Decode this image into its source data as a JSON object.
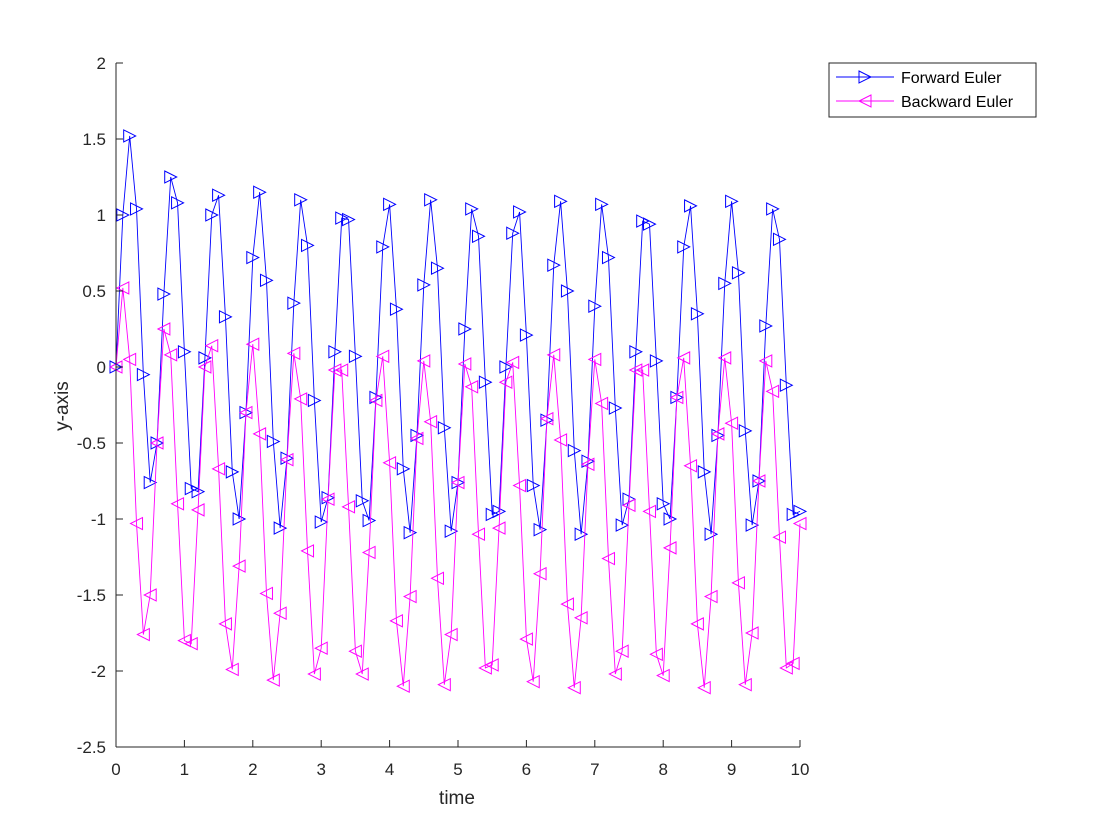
{
  "chart_data": {
    "type": "line",
    "title": "",
    "xlabel": "time",
    "ylabel": "y-axis",
    "xlim": [
      0,
      10
    ],
    "ylim": [
      -2.5,
      2
    ],
    "xticks": [
      "0",
      "1",
      "2",
      "3",
      "4",
      "5",
      "6",
      "7",
      "8",
      "9",
      "10"
    ],
    "yticks": [
      "2",
      "1.5",
      "1",
      "0.5",
      "0",
      "-0.5",
      "-1",
      "-1.5",
      "-2",
      "-2.5"
    ],
    "grid": false,
    "legend_position": "top-right",
    "x": [
      0,
      0.1,
      0.2,
      0.3,
      0.4,
      0.5,
      0.6,
      0.7,
      0.8,
      0.9,
      1.0,
      1.1,
      1.2,
      1.3,
      1.4,
      1.5,
      1.6,
      1.7,
      1.8,
      1.9,
      2.0,
      2.1,
      2.2,
      2.3,
      2.4,
      2.5,
      2.6,
      2.7,
      2.8,
      2.9,
      3.0,
      3.1,
      3.2,
      3.3,
      3.4,
      3.5,
      3.6,
      3.7,
      3.8,
      3.9,
      4.0,
      4.1,
      4.2,
      4.3,
      4.4,
      4.5,
      4.6,
      4.7,
      4.8,
      4.9,
      5.0,
      5.1,
      5.2,
      5.3,
      5.4,
      5.5,
      5.6,
      5.7,
      5.8,
      5.9,
      6.0,
      6.1,
      6.2,
      6.3,
      6.4,
      6.5,
      6.6,
      6.7,
      6.8,
      6.9,
      7.0,
      7.1,
      7.2,
      7.3,
      7.4,
      7.5,
      7.6,
      7.7,
      7.8,
      7.9,
      8.0,
      8.1,
      8.2,
      8.3,
      8.4,
      8.5,
      8.6,
      8.7,
      8.8,
      8.9,
      9.0,
      9.1,
      9.2,
      9.3,
      9.4,
      9.5,
      9.6,
      9.7,
      9.8,
      9.9,
      10.0
    ],
    "series": [
      {
        "name": "Forward Euler",
        "color": "#0000ff",
        "marker": "triangle-right",
        "values": [
          0,
          1.0,
          1.52,
          1.04,
          -0.05,
          -0.76,
          -0.5,
          0.48,
          1.25,
          1.08,
          0.1,
          -0.8,
          -0.82,
          0.06,
          1.0,
          1.13,
          0.33,
          -0.69,
          -1.0,
          -0.3,
          0.72,
          1.15,
          0.57,
          -0.49,
          -1.06,
          -0.6,
          0.42,
          1.1,
          0.8,
          -0.22,
          -1.02,
          -0.86,
          0.1,
          0.98,
          0.97,
          0.07,
          -0.88,
          -1.01,
          -0.2,
          0.79,
          1.07,
          0.38,
          -0.67,
          -1.09,
          -0.45,
          0.54,
          1.1,
          0.65,
          -0.4,
          -1.08,
          -0.76,
          0.25,
          1.04,
          0.86,
          -0.1,
          -0.97,
          -0.95,
          0.0,
          0.88,
          1.02,
          0.21,
          -0.78,
          -1.07,
          -0.35,
          0.67,
          1.09,
          0.5,
          -0.55,
          -1.1,
          -0.62,
          0.4,
          1.07,
          0.72,
          -0.27,
          -1.04,
          -0.87,
          0.1,
          0.96,
          0.94,
          0.04,
          -0.9,
          -1.0,
          -0.2,
          0.79,
          1.06,
          0.35,
          -0.69,
          -1.1,
          -0.45,
          0.55,
          1.09,
          0.62,
          -0.42,
          -1.04,
          -0.75,
          0.27,
          1.04,
          0.84,
          -0.12,
          -0.97,
          -0.95
        ]
      },
      {
        "name": "Backward Euler",
        "color": "#ff00ff",
        "marker": "triangle-left",
        "values": [
          0,
          0.52,
          0.05,
          -1.03,
          -1.76,
          -1.5,
          -0.5,
          0.25,
          0.08,
          -0.9,
          -1.8,
          -1.82,
          -0.94,
          0.0,
          0.14,
          -0.67,
          -1.69,
          -1.99,
          -1.31,
          -0.3,
          0.15,
          -0.44,
          -1.49,
          -2.06,
          -1.62,
          -0.61,
          0.09,
          -0.21,
          -1.21,
          -2.02,
          -1.85,
          -0.87,
          -0.02,
          -0.02,
          -0.92,
          -1.87,
          -2.02,
          -1.22,
          -0.22,
          0.07,
          -0.63,
          -1.67,
          -2.1,
          -1.51,
          -0.47,
          0.04,
          -0.36,
          -1.39,
          -2.09,
          -1.76,
          -0.76,
          0.02,
          -0.13,
          -1.1,
          -1.98,
          -1.96,
          -1.06,
          -0.1,
          0.03,
          -0.78,
          -1.79,
          -2.07,
          -1.36,
          -0.34,
          0.08,
          -0.48,
          -1.56,
          -2.11,
          -1.65,
          -0.64,
          0.05,
          -0.24,
          -1.26,
          -2.02,
          -1.87,
          -0.91,
          -0.02,
          -0.02,
          -0.95,
          -1.89,
          -2.03,
          -1.19,
          -0.2,
          0.06,
          -0.65,
          -1.69,
          -2.11,
          -1.51,
          -0.44,
          0.06,
          -0.37,
          -1.42,
          -2.09,
          -1.75,
          -0.75,
          0.04,
          -0.16,
          -1.12,
          -1.98,
          -1.95,
          -1.03
        ]
      }
    ]
  }
}
